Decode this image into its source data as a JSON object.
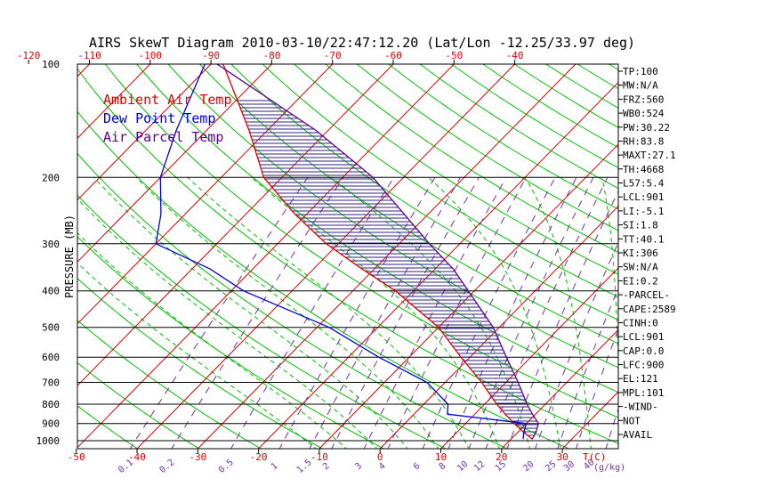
{
  "chart_data": {
    "type": "line",
    "chart_kind": "skew-t log-p diagram",
    "title": "AIRS SkewT Diagram 2010-03-10/22:47:12.20 (Lat/Lon -12.25/33.97 deg)",
    "ylabel": "PRESSURE (MB)",
    "y_scale": "log",
    "ylim": [
      1050,
      100
    ],
    "pressure_ticks": [
      "100",
      "200",
      "300",
      "400",
      "500",
      "600",
      "700",
      "800",
      "900",
      "1000"
    ],
    "pressure_gridlines": [
      100,
      200,
      300,
      400,
      500,
      600,
      700,
      800,
      900,
      1000
    ],
    "top_temp_ticks": [
      "-120",
      "-110",
      "-100",
      "-90",
      "-80",
      "-70",
      "-60",
      "-50",
      "-40"
    ],
    "bottom_temp_ticks": [
      "-50",
      "-40",
      "-30",
      "-20",
      "-10",
      "0",
      "10",
      "20",
      "30"
    ],
    "bottom_axis_unit": "T(C)",
    "mixing_ratio_ticks": [
      "0.1",
      "0.2",
      "0.5",
      "1",
      "1.5",
      "2",
      "3",
      "4",
      "6",
      "8",
      "10",
      "12",
      "15",
      "20",
      "25",
      "30"
    ],
    "mixing_ratio_unit": "(g/kg)",
    "extra_bottom_labels": [
      "40"
    ],
    "legend": [
      {
        "label": "Ambient Air Temp",
        "color": "#e00000"
      },
      {
        "label": "Dew Point Temp",
        "color": "#0000e0"
      },
      {
        "label": "Air Parcel Temp",
        "color": "#600090"
      }
    ],
    "colors": {
      "isotherm": "#e00000",
      "dry_adiabat": "#00c000",
      "moist_adiabat": "#00c000",
      "mixing_ratio": "#7030a0",
      "cape_hatch": "#302080",
      "axis": "#000000"
    },
    "series": [
      {
        "name": "Ambient Air Temp",
        "color": "#e00000",
        "points": [
          [
            100,
            -88
          ],
          [
            150,
            -73
          ],
          [
            200,
            -63
          ],
          [
            250,
            -52
          ],
          [
            300,
            -42
          ],
          [
            350,
            -32
          ],
          [
            400,
            -23
          ],
          [
            500,
            -10
          ],
          [
            600,
            -1.5
          ],
          [
            700,
            6
          ],
          [
            800,
            12
          ],
          [
            850,
            15
          ],
          [
            900,
            18
          ],
          [
            950,
            21
          ],
          [
            990,
            23.5
          ]
        ]
      },
      {
        "name": "Dew Point Temp",
        "color": "#0000e0",
        "points": [
          [
            100,
            -91
          ],
          [
            150,
            -85
          ],
          [
            200,
            -80
          ],
          [
            250,
            -74
          ],
          [
            300,
            -70
          ],
          [
            350,
            -57
          ],
          [
            400,
            -48
          ],
          [
            500,
            -28
          ],
          [
            600,
            -15
          ],
          [
            700,
            -3
          ],
          [
            800,
            4
          ],
          [
            850,
            5.5
          ],
          [
            900,
            20
          ],
          [
            950,
            21
          ],
          [
            990,
            22
          ]
        ]
      },
      {
        "name": "Air Parcel Temp",
        "color": "#600090",
        "points": [
          [
            100,
            -89
          ],
          [
            150,
            -62
          ],
          [
            200,
            -45
          ],
          [
            250,
            -34
          ],
          [
            300,
            -25
          ],
          [
            350,
            -17
          ],
          [
            400,
            -11
          ],
          [
            500,
            -1
          ],
          [
            600,
            6
          ],
          [
            700,
            12
          ],
          [
            800,
            17
          ],
          [
            850,
            19.5
          ],
          [
            900,
            22
          ],
          [
            950,
            23
          ],
          [
            990,
            23.5
          ]
        ]
      }
    ],
    "indices": [
      "TP:100",
      "MW:N/A",
      "FRZ:560",
      "WB0:524",
      "PW:30.22",
      "RH:83.8",
      "MAXT:27.1",
      "TH:4668",
      "L57:5.4",
      "LCL:901",
      "LI:-5.1",
      "SI:1.8",
      "TT:40.1",
      "KI:306",
      "SW:N/A",
      "EI:0.2",
      "-PARCEL-",
      "CAPE:2589",
      "CINH:0",
      "LCL:901",
      "CAP:0.0",
      "LFC:900",
      "EL:121",
      "MPL:101",
      "-WIND-",
      "NOT",
      "AVAIL"
    ]
  }
}
